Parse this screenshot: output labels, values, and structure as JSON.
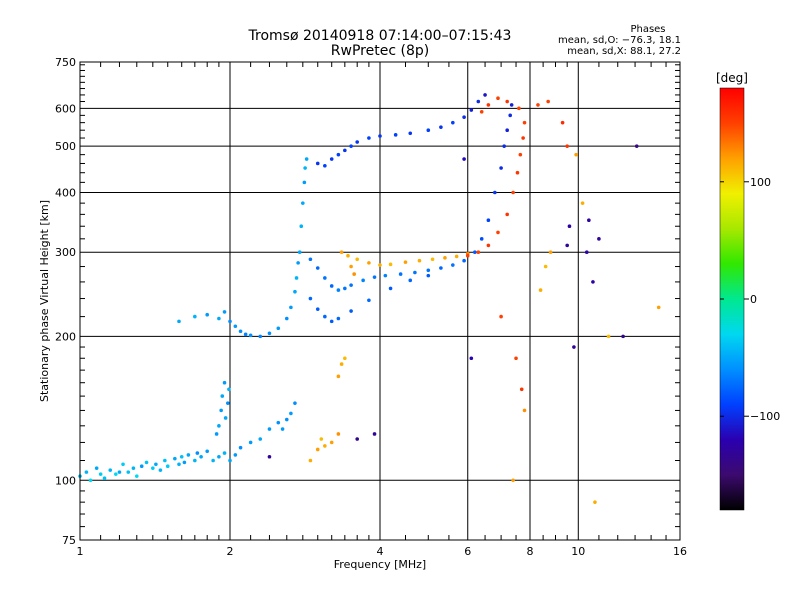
{
  "chart_data": {
    "type": "scatter",
    "title": "Tromsø 20140918 07:14:00–07:15:43",
    "subtitle": "RwPretec (8p)",
    "xlabel": "Frequency [MHz]",
    "ylabel": "Stationary phase Virtual Height [km]",
    "x_scale": "log",
    "y_scale": "log",
    "xlim": [
      1,
      16
    ],
    "ylim": [
      75,
      750
    ],
    "x_ticks": [
      1,
      2,
      4,
      6,
      8,
      10,
      16
    ],
    "x_tick_labels": [
      "1",
      "2",
      "4",
      "6",
      "8",
      "10",
      "16"
    ],
    "y_ticks": [
      75,
      100,
      200,
      300,
      400,
      500,
      600,
      750
    ],
    "y_tick_labels": [
      "75",
      "100",
      "200",
      "300",
      "400",
      "500",
      "600",
      "750"
    ],
    "grid": true,
    "phase_box": {
      "title": "Phases",
      "o_line": "mean, sd,O: −76.3, 18.1",
      "x_line": "mean, sd,X:  88.1, 27.2"
    },
    "colorbar": {
      "label": "[deg]",
      "range": [
        -180,
        180
      ],
      "ticks": [
        100,
        0,
        -100
      ],
      "tick_labels": [
        "100",
        "0",
        "−100"
      ],
      "colormap": [
        "#000000",
        "#3c0a6e",
        "#2a00b0",
        "#0040ff",
        "#0090ff",
        "#00d8f0",
        "#00e890",
        "#30e800",
        "#a8e800",
        "#f0f000",
        "#ffa000",
        "#ff4000",
        "#ff0000"
      ]
    },
    "series": [
      {
        "values": [
          [
            1.0,
            102,
            -40
          ],
          [
            1.03,
            104,
            -45
          ],
          [
            1.05,
            100,
            -30
          ],
          [
            1.08,
            106,
            -50
          ],
          [
            1.1,
            103,
            -35
          ],
          [
            1.12,
            101,
            -40
          ],
          [
            1.15,
            105,
            -45
          ],
          [
            1.18,
            103,
            -30
          ],
          [
            1.2,
            104,
            -50
          ],
          [
            1.22,
            108,
            -35
          ],
          [
            1.25,
            104,
            -40
          ],
          [
            1.28,
            106,
            -45
          ],
          [
            1.3,
            102,
            -30
          ],
          [
            1.33,
            107,
            -55
          ],
          [
            1.36,
            109,
            -40
          ],
          [
            1.4,
            106,
            -35
          ],
          [
            1.42,
            108,
            -50
          ],
          [
            1.45,
            105,
            -45
          ],
          [
            1.48,
            110,
            -40
          ],
          [
            1.5,
            107,
            -35
          ],
          [
            1.55,
            111,
            -50
          ],
          [
            1.58,
            108,
            -45
          ],
          [
            1.6,
            112,
            -40
          ],
          [
            1.62,
            109,
            -55
          ],
          [
            1.65,
            113,
            -50
          ],
          [
            1.7,
            110,
            -45
          ],
          [
            1.72,
            114,
            -60
          ],
          [
            1.75,
            112,
            -50
          ],
          [
            1.8,
            115,
            -55
          ],
          [
            1.85,
            110,
            -45
          ],
          [
            1.9,
            112,
            -50
          ],
          [
            1.95,
            114,
            -45
          ],
          [
            2.0,
            110,
            -50
          ],
          [
            2.05,
            113,
            -55
          ],
          [
            2.1,
            117,
            -60
          ],
          [
            2.2,
            120,
            -55
          ],
          [
            2.3,
            122,
            -50
          ],
          [
            2.4,
            128,
            -55
          ],
          [
            2.5,
            132,
            -60
          ],
          [
            2.55,
            128,
            -55
          ],
          [
            2.6,
            134,
            -60
          ],
          [
            2.65,
            138,
            -55
          ],
          [
            2.7,
            145,
            -60
          ]
        ]
      },
      {
        "values": [
          [
            1.88,
            125,
            -55
          ],
          [
            1.9,
            130,
            -50
          ],
          [
            1.92,
            140,
            -55
          ],
          [
            1.93,
            150,
            -50
          ],
          [
            1.95,
            160,
            -55
          ],
          [
            1.96,
            135,
            -50
          ],
          [
            1.98,
            145,
            -60
          ],
          [
            1.99,
            155,
            -45
          ]
        ]
      },
      {
        "values": [
          [
            1.58,
            215,
            -50
          ],
          [
            1.7,
            220,
            -45
          ],
          [
            1.8,
            222,
            -55
          ],
          [
            1.9,
            218,
            -50
          ],
          [
            1.95,
            225,
            -55
          ],
          [
            2.0,
            215,
            -60
          ],
          [
            2.05,
            210,
            -55
          ],
          [
            2.1,
            205,
            -60
          ],
          [
            2.15,
            202,
            -65
          ],
          [
            2.2,
            201,
            -60
          ],
          [
            2.3,
            200,
            -65
          ],
          [
            2.4,
            203,
            -60
          ],
          [
            2.5,
            208,
            -55
          ],
          [
            2.6,
            218,
            -60
          ],
          [
            2.65,
            230,
            -55
          ],
          [
            2.7,
            248,
            -50
          ],
          [
            2.72,
            265,
            -45
          ],
          [
            2.74,
            285,
            -55
          ],
          [
            2.76,
            300,
            -50
          ],
          [
            2.78,
            340,
            -45
          ],
          [
            2.8,
            380,
            -50
          ],
          [
            2.82,
            420,
            -55
          ],
          [
            2.83,
            450,
            -45
          ],
          [
            2.85,
            470,
            -50
          ]
        ]
      },
      {
        "values": [
          [
            2.9,
            290,
            -70
          ],
          [
            3.0,
            278,
            -75
          ],
          [
            3.1,
            265,
            -70
          ],
          [
            3.2,
            255,
            -75
          ],
          [
            3.3,
            250,
            -65
          ],
          [
            3.4,
            252,
            -70
          ],
          [
            3.5,
            256,
            -70
          ],
          [
            3.7,
            262,
            -65
          ],
          [
            3.9,
            266,
            -70
          ],
          [
            4.1,
            268,
            -65
          ],
          [
            4.4,
            270,
            -70
          ],
          [
            4.7,
            272,
            -70
          ],
          [
            5.0,
            275,
            -70
          ],
          [
            5.3,
            278,
            -75
          ],
          [
            5.6,
            282,
            -70
          ],
          [
            5.9,
            288,
            -75
          ],
          [
            6.2,
            300,
            -80
          ],
          [
            6.4,
            320,
            -85
          ],
          [
            6.6,
            350,
            -90
          ],
          [
            6.8,
            400,
            -95
          ],
          [
            7.0,
            450,
            -100
          ],
          [
            7.1,
            500,
            -100
          ],
          [
            7.2,
            540,
            -105
          ],
          [
            7.3,
            580,
            -100
          ],
          [
            7.35,
            610,
            -105
          ],
          [
            2.9,
            240,
            -75
          ],
          [
            3.0,
            228,
            -80
          ],
          [
            3.1,
            220,
            -75
          ],
          [
            3.2,
            215,
            -80
          ],
          [
            3.3,
            218,
            -75
          ],
          [
            3.5,
            226,
            -80
          ],
          [
            3.8,
            238,
            -75
          ],
          [
            4.2,
            252,
            -80
          ],
          [
            4.6,
            262,
            -75
          ],
          [
            5.0,
            268,
            -80
          ],
          [
            3.0,
            460,
            -95
          ],
          [
            3.1,
            455,
            -90
          ],
          [
            3.2,
            470,
            -95
          ],
          [
            3.3,
            480,
            -90
          ],
          [
            3.4,
            490,
            -95
          ],
          [
            3.5,
            500,
            -90
          ],
          [
            3.6,
            510,
            -95
          ],
          [
            3.8,
            520,
            -90
          ],
          [
            4.0,
            525,
            -95
          ],
          [
            4.3,
            528,
            -90
          ],
          [
            4.6,
            532,
            -95
          ],
          [
            5.0,
            540,
            -90
          ],
          [
            5.3,
            548,
            -95
          ],
          [
            5.6,
            560,
            -90
          ],
          [
            5.9,
            575,
            -100
          ],
          [
            6.1,
            595,
            -105
          ],
          [
            6.3,
            620,
            -100
          ],
          [
            6.5,
            640,
            -110
          ]
        ]
      },
      {
        "values": [
          [
            3.6,
            290,
            110
          ],
          [
            3.8,
            285,
            120
          ],
          [
            4.0,
            282,
            115
          ],
          [
            4.2,
            283,
            110
          ],
          [
            4.5,
            286,
            120
          ],
          [
            4.8,
            288,
            115
          ],
          [
            5.1,
            290,
            110
          ],
          [
            5.4,
            292,
            120
          ],
          [
            5.7,
            294,
            115
          ],
          [
            6.0,
            298,
            130
          ],
          [
            3.35,
            300,
            120
          ],
          [
            3.45,
            295,
            115
          ],
          [
            3.5,
            280,
            120
          ],
          [
            3.55,
            270,
            125
          ],
          [
            3.3,
            165,
            120
          ],
          [
            3.35,
            175,
            115
          ],
          [
            3.4,
            180,
            110
          ],
          [
            3.3,
            125,
            125
          ],
          [
            3.2,
            120,
            120
          ],
          [
            3.1,
            118,
            115
          ],
          [
            3.0,
            116,
            120
          ],
          [
            3.05,
            122,
            110
          ],
          [
            2.9,
            110,
            115
          ],
          [
            8.8,
            300,
            120
          ],
          [
            8.6,
            280,
            110
          ],
          [
            8.4,
            250,
            115
          ],
          [
            7.8,
            140,
            125
          ],
          [
            9.9,
            480,
            120
          ],
          [
            10.2,
            380,
            115
          ],
          [
            11.5,
            200,
            110
          ],
          [
            14.5,
            230,
            120
          ],
          [
            10.8,
            90,
            115
          ],
          [
            7.4,
            100,
            120
          ]
        ]
      },
      {
        "values": [
          [
            6.0,
            295,
            150
          ],
          [
            6.3,
            300,
            150
          ],
          [
            6.6,
            310,
            155
          ],
          [
            6.9,
            330,
            150
          ],
          [
            7.2,
            360,
            155
          ],
          [
            7.4,
            400,
            150
          ],
          [
            7.55,
            440,
            155
          ],
          [
            7.65,
            480,
            150
          ],
          [
            7.75,
            520,
            155
          ],
          [
            7.8,
            560,
            150
          ],
          [
            7.6,
            600,
            150
          ],
          [
            7.2,
            620,
            155
          ],
          [
            6.9,
            630,
            150
          ],
          [
            6.6,
            610,
            155
          ],
          [
            6.4,
            590,
            150
          ],
          [
            7.5,
            180,
            150
          ],
          [
            7.7,
            155,
            155
          ],
          [
            8.3,
            610,
            150
          ],
          [
            8.7,
            620,
            150
          ],
          [
            9.3,
            560,
            160
          ],
          [
            9.5,
            500,
            155
          ],
          [
            7.0,
            220,
            150
          ]
        ]
      },
      {
        "values": [
          [
            9.5,
            310,
            -130
          ],
          [
            9.6,
            340,
            -125
          ],
          [
            10.5,
            350,
            -130
          ],
          [
            10.4,
            300,
            -125
          ],
          [
            11.0,
            320,
            -130
          ],
          [
            12.3,
            200,
            -135
          ],
          [
            13.1,
            500,
            -140
          ],
          [
            9.8,
            190,
            -130
          ],
          [
            10.7,
            260,
            -125
          ],
          [
            6.1,
            180,
            -120
          ],
          [
            5.9,
            470,
            -115
          ],
          [
            3.9,
            125,
            -130
          ],
          [
            3.6,
            122,
            -135
          ],
          [
            2.4,
            112,
            -130
          ]
        ]
      }
    ]
  }
}
